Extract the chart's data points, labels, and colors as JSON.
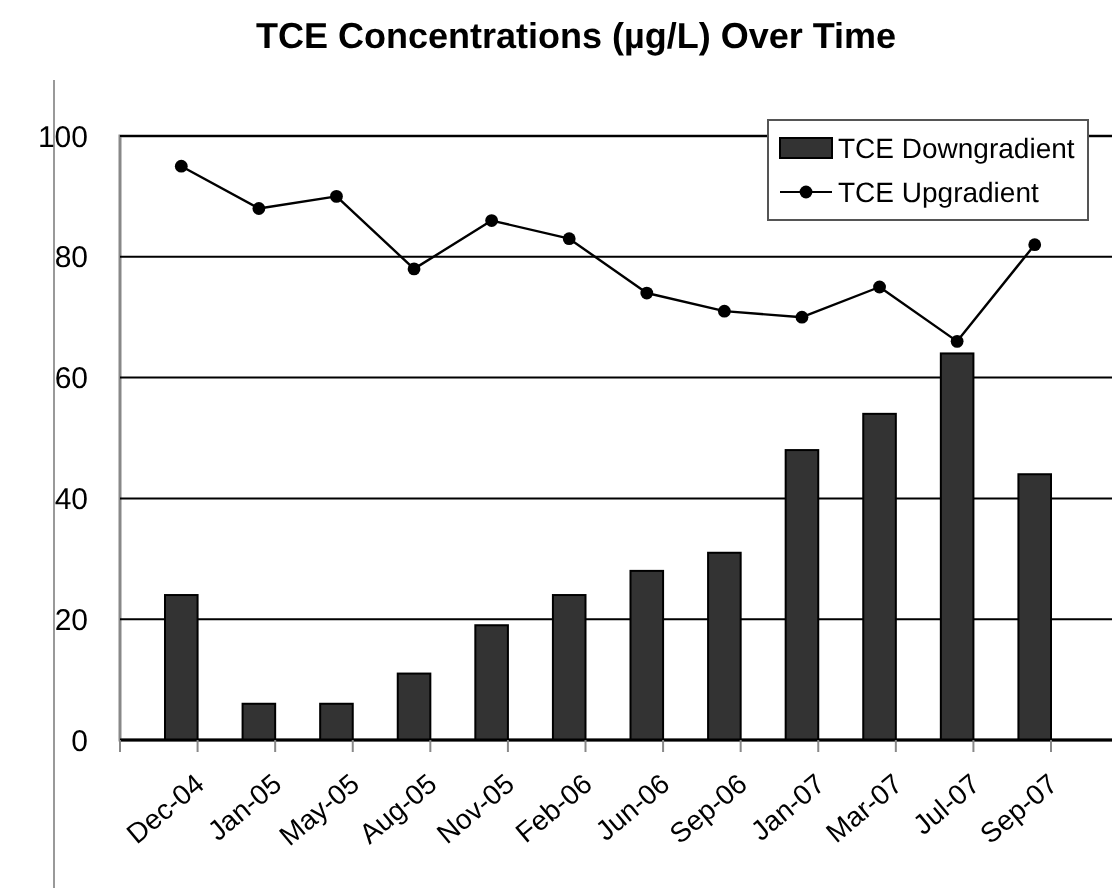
{
  "chart_data": {
    "type": "bar",
    "title": "TCE Concentrations (µg/L) Over Time",
    "categories": [
      "Dec-04",
      "Jan-05",
      "May-05",
      "Aug-05",
      "Nov-05",
      "Feb-06",
      "Jun-06",
      "Sep-06",
      "Jan-07",
      "Mar-07",
      "Jul-07",
      "Sep-07"
    ],
    "series": [
      {
        "name": "TCE Downgradient",
        "color": "#333333",
        "values": [
          24,
          6,
          6,
          11,
          19,
          24,
          28,
          31,
          48,
          54,
          64,
          44
        ]
      },
      {
        "name": "TCE Upgradient",
        "type": "line",
        "color": "#000000",
        "marker": "circle",
        "values": [
          95,
          88,
          90,
          78,
          86,
          83,
          74,
          71,
          70,
          75,
          66,
          82
        ]
      }
    ],
    "ylim": [
      0,
      100
    ],
    "yticks": [
      0,
      20,
      40,
      60,
      80,
      100
    ],
    "grid": "y",
    "legend": "top right"
  }
}
